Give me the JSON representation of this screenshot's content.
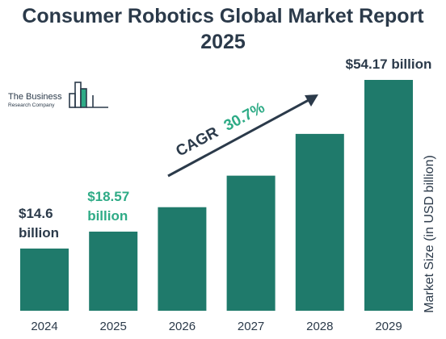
{
  "title_line1": "Consumer Robotics Global Market Report",
  "title_line2": "2025",
  "logo": {
    "line1": "The Business",
    "line2": "Research Company"
  },
  "cagr": {
    "label": "CAGR",
    "value": "30.7%"
  },
  "colors": {
    "bar": "#1f7a6b",
    "dark_text": "#2b3a4a",
    "highlight": "#2eab86"
  },
  "chart_data": {
    "type": "bar",
    "categories": [
      "2024",
      "2025",
      "2026",
      "2027",
      "2028",
      "2029"
    ],
    "values": [
      14.6,
      18.57,
      24.3,
      31.7,
      41.5,
      54.17
    ],
    "ylabel": "Market Size (in USD billion)",
    "data_labels": [
      {
        "index": 0,
        "lines": [
          "$14.6",
          "billion"
        ],
        "color": "#2b3a4a"
      },
      {
        "index": 1,
        "lines": [
          "$18.57",
          "billion"
        ],
        "color": "#2eab86"
      },
      {
        "index": 5,
        "lines": [
          "$54.17 billion"
        ],
        "color": "#2b3a4a"
      }
    ],
    "ylim": [
      0,
      54.17
    ]
  }
}
